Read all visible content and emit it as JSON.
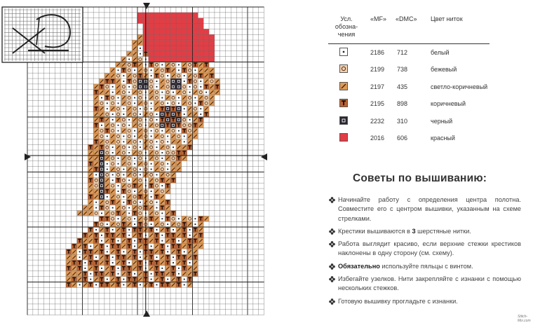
{
  "colors": {
    "white": "#ffffff",
    "beige": "#f1d3b0",
    "light_brown": "#dd9a57",
    "brown": "#b86333",
    "black": "#2a2530",
    "red": "#e23d45",
    "grid_line": "#5a5a5a",
    "grid_major": "#222222"
  },
  "legend": {
    "header": {
      "symbol_label": "Усл. обозна- чения",
      "mf_label": "«MF»",
      "dmc_label": "«DMC»",
      "color_label": "Цвет ниток"
    },
    "rows": [
      {
        "symbol": "dot",
        "color": "#ffffff",
        "mf": "2186",
        "dmc": "712",
        "name": "белый"
      },
      {
        "symbol": "ring",
        "color": "#f1d3b0",
        "mf": "2199",
        "dmc": "738",
        "name": "бежевый"
      },
      {
        "symbol": "slash",
        "color": "#dd9a57",
        "mf": "2197",
        "dmc": "435",
        "name": "светло-коричневый"
      },
      {
        "symbol": "T",
        "color": "#b86333",
        "mf": "2195",
        "dmc": "898",
        "name": "коричневый"
      },
      {
        "symbol": "square",
        "color": "#2a2530",
        "mf": "2232",
        "dmc": "310",
        "name": "черный"
      },
      {
        "symbol": "solid",
        "color": "#e23d45",
        "mf": "2016",
        "dmc": "606",
        "name": "красный"
      }
    ]
  },
  "tips": {
    "title": "Советы по вышиванию:",
    "items": [
      {
        "pre": "",
        "bold": "",
        "post": "Начинайте работу с определения центра полотна. Совместите его с центром вышивки, указанным на схеме стрелками."
      },
      {
        "pre": "Крестики вышиваются в ",
        "bold": "3",
        "post": " шерстяные нитки."
      },
      {
        "pre": "",
        "bold": "",
        "post": "Работа выглядит красиво, если верхние стежки крестиков наклонены в одну сторону (см. схему)."
      },
      {
        "pre": "",
        "bold": "Обязательно",
        "post": " используйте пяльцы с винтом."
      },
      {
        "pre": "",
        "bold": "",
        "post": "Избегайте узелков. Нити закрепляйте с изнанки с помощью нескольких стежков."
      },
      {
        "pre": "",
        "bold": "",
        "post": "Готовую вышивку прогладьте с изнанки."
      }
    ]
  },
  "credit": "Stitch-Mix.com"
}
